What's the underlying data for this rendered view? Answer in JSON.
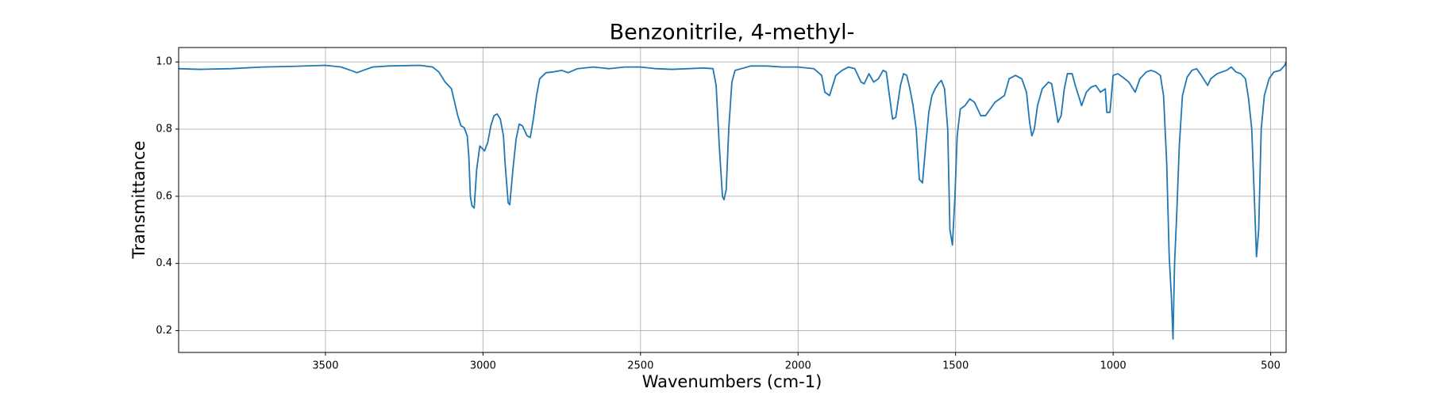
{
  "chart_data": {
    "type": "line",
    "title": "Benzonitrile, 4-methyl-",
    "xlabel": "Wavenumbers (cm-1)",
    "ylabel": "Transmittance",
    "color": "#1f77b4",
    "grid": true,
    "xlim": [
      3966,
      451
    ],
    "ylim": [
      0.135,
      1.043
    ],
    "xticks": [
      3500,
      3000,
      2500,
      2000,
      1500,
      1000,
      500
    ],
    "yticks": [
      0.2,
      0.4,
      0.6,
      0.8,
      {
        "value": 1,
        "label": "1.0"
      }
    ],
    "x": [
      3966,
      3900,
      3800,
      3700,
      3600,
      3500,
      3450,
      3420,
      3400,
      3380,
      3350,
      3300,
      3200,
      3160,
      3140,
      3120,
      3100,
      3090,
      3080,
      3070,
      3060,
      3050,
      3045,
      3040,
      3035,
      3028,
      3020,
      3010,
      3000,
      2995,
      2985,
      2975,
      2965,
      2955,
      2945,
      2935,
      2930,
      2920,
      2915,
      2905,
      2895,
      2885,
      2875,
      2860,
      2850,
      2840,
      2830,
      2820,
      2800,
      2780,
      2750,
      2730,
      2700,
      2650,
      2600,
      2550,
      2500,
      2450,
      2400,
      2300,
      2270,
      2260,
      2250,
      2240,
      2235,
      2228,
      2220,
      2210,
      2200,
      2150,
      2100,
      2050,
      2000,
      1950,
      1925,
      1915,
      1900,
      1880,
      1860,
      1840,
      1820,
      1800,
      1790,
      1775,
      1760,
      1745,
      1730,
      1720,
      1710,
      1700,
      1690,
      1675,
      1665,
      1655,
      1645,
      1635,
      1625,
      1615,
      1605,
      1595,
      1585,
      1575,
      1565,
      1555,
      1545,
      1535,
      1525,
      1518,
      1510,
      1502,
      1495,
      1485,
      1470,
      1455,
      1440,
      1420,
      1405,
      1390,
      1375,
      1360,
      1345,
      1330,
      1310,
      1290,
      1275,
      1265,
      1258,
      1250,
      1240,
      1225,
      1205,
      1195,
      1185,
      1175,
      1165,
      1155,
      1145,
      1130,
      1120,
      1110,
      1100,
      1085,
      1070,
      1055,
      1040,
      1025,
      1020,
      1010,
      1000,
      985,
      970,
      950,
      930,
      915,
      895,
      880,
      865,
      850,
      840,
      830,
      822,
      815,
      810,
      805,
      798,
      790,
      780,
      765,
      750,
      735,
      720,
      700,
      690,
      670,
      640,
      625,
      610,
      595,
      580,
      570,
      560,
      552,
      545,
      538,
      530,
      520,
      505,
      490,
      470,
      455,
      451
    ],
    "values": [
      0.98,
      0.978,
      0.98,
      0.985,
      0.987,
      0.99,
      0.985,
      0.975,
      0.968,
      0.975,
      0.985,
      0.988,
      0.99,
      0.985,
      0.97,
      0.94,
      0.92,
      0.88,
      0.84,
      0.81,
      0.805,
      0.78,
      0.72,
      0.6,
      0.572,
      0.565,
      0.68,
      0.75,
      0.74,
      0.735,
      0.76,
      0.81,
      0.84,
      0.845,
      0.83,
      0.78,
      0.7,
      0.58,
      0.575,
      0.68,
      0.77,
      0.815,
      0.81,
      0.78,
      0.775,
      0.83,
      0.9,
      0.95,
      0.968,
      0.97,
      0.975,
      0.968,
      0.98,
      0.985,
      0.98,
      0.985,
      0.985,
      0.98,
      0.978,
      0.982,
      0.98,
      0.93,
      0.75,
      0.6,
      0.59,
      0.62,
      0.8,
      0.94,
      0.975,
      0.988,
      0.988,
      0.985,
      0.985,
      0.98,
      0.96,
      0.91,
      0.9,
      0.96,
      0.975,
      0.985,
      0.98,
      0.94,
      0.935,
      0.965,
      0.94,
      0.95,
      0.975,
      0.97,
      0.9,
      0.83,
      0.835,
      0.93,
      0.965,
      0.96,
      0.92,
      0.87,
      0.8,
      0.65,
      0.64,
      0.75,
      0.85,
      0.9,
      0.92,
      0.935,
      0.945,
      0.92,
      0.8,
      0.5,
      0.455,
      0.6,
      0.78,
      0.86,
      0.87,
      0.89,
      0.88,
      0.84,
      0.84,
      0.86,
      0.88,
      0.89,
      0.9,
      0.95,
      0.96,
      0.95,
      0.91,
      0.82,
      0.78,
      0.8,
      0.87,
      0.92,
      0.94,
      0.935,
      0.88,
      0.82,
      0.84,
      0.92,
      0.965,
      0.965,
      0.93,
      0.9,
      0.87,
      0.91,
      0.925,
      0.93,
      0.91,
      0.92,
      0.85,
      0.85,
      0.96,
      0.965,
      0.955,
      0.94,
      0.91,
      0.95,
      0.97,
      0.975,
      0.97,
      0.96,
      0.9,
      0.7,
      0.42,
      0.3,
      0.175,
      0.4,
      0.55,
      0.75,
      0.9,
      0.955,
      0.975,
      0.98,
      0.96,
      0.93,
      0.95,
      0.965,
      0.975,
      0.985,
      0.97,
      0.965,
      0.95,
      0.89,
      0.8,
      0.6,
      0.42,
      0.5,
      0.8,
      0.9,
      0.95,
      0.97,
      0.975,
      0.99,
      1.0
    ]
  }
}
